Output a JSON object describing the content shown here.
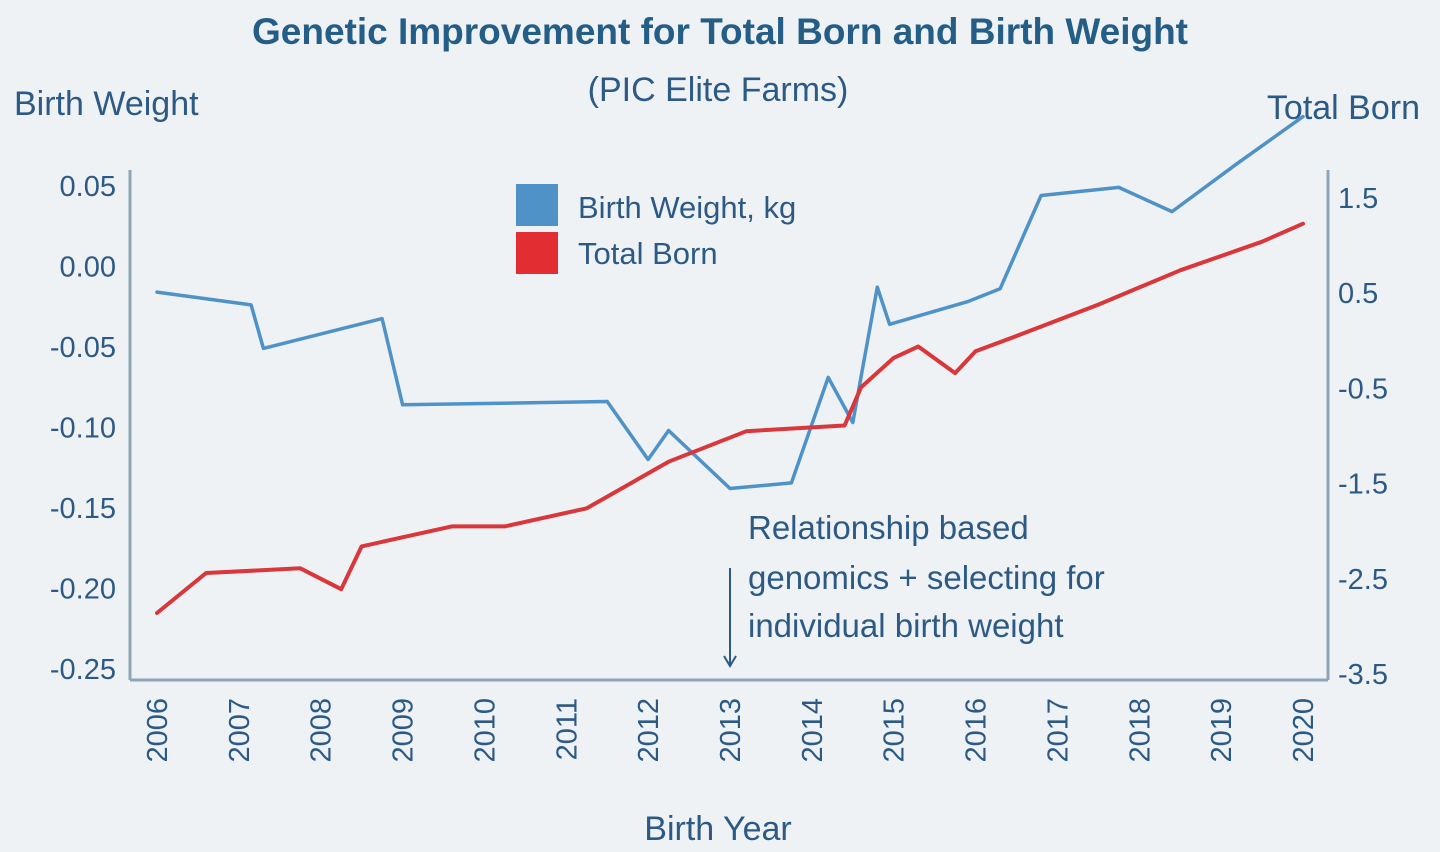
{
  "chart_data": {
    "type": "line",
    "title": "Genetic Improvement for Total Born and Birth Weight",
    "subtitle": "(PIC Elite Farms)",
    "xlabel": "Birth Year",
    "ylabel_left": "Birth Weight",
    "ylabel_right": "Total Born",
    "categories": [
      "2006",
      "2007",
      "2008",
      "2009",
      "2010",
      "2011",
      "2012",
      "2013",
      "2014",
      "2015",
      "2016",
      "2017",
      "2018",
      "2019",
      "2020"
    ],
    "xlim": [
      2006,
      2020
    ],
    "ylim_left": [
      -0.25,
      0.05
    ],
    "ylim_right": [
      -3.5,
      1.5
    ],
    "left_ticks": [
      "0.05",
      "0.00",
      "-0.05",
      "-0.10",
      "-0.15",
      "-0.20",
      "-0.25"
    ],
    "right_ticks": [
      "1.5",
      "0.5",
      "-0.5",
      "-1.5",
      "-2.5",
      "-3.5"
    ],
    "legend_position": "top-center",
    "grid": false,
    "series": [
      {
        "name": "Birth Weight, kg",
        "axis": "left",
        "color": "#4f92c7",
        "x": [
          2006.0,
          2007.15,
          2007.3,
          2008.75,
          2009.0,
          2011.5,
          2012.0,
          2012.25,
          2013.0,
          2013.75,
          2014.2,
          2014.5,
          2014.8,
          2014.95,
          2015.9,
          2016.3,
          2016.8,
          2017.75,
          2018.4,
          2019.2,
          2020.0
        ],
        "y": [
          -0.0165,
          -0.0245,
          -0.0515,
          -0.033,
          -0.0865,
          -0.0845,
          -0.1205,
          -0.1025,
          -0.1385,
          -0.135,
          -0.0695,
          -0.0975,
          -0.0135,
          -0.0365,
          -0.0225,
          -0.0145,
          0.0435,
          0.0485,
          0.0335,
          0.0635,
          0.0925
        ]
      },
      {
        "name": "Total Born",
        "axis": "right",
        "color": "#d9373b",
        "x": [
          2006.0,
          2006.6,
          2007.75,
          2008.25,
          2008.5,
          2009.6,
          2010.25,
          2011.25,
          2012.25,
          2013.2,
          2014.4,
          2014.6,
          2015.0,
          2015.3,
          2015.75,
          2016.0,
          2016.5,
          2017.5,
          2018.5,
          2019.5,
          2020.0
        ],
        "y": [
          -2.87,
          -2.45,
          -2.4,
          -2.62,
          -2.17,
          -1.96,
          -1.96,
          -1.77,
          -1.28,
          -0.96,
          -0.9,
          -0.5,
          -0.19,
          -0.07,
          -0.35,
          -0.12,
          0.04,
          0.37,
          0.73,
          1.03,
          1.22
        ]
      }
    ],
    "annotation": {
      "lines": [
        "Relationship based",
        "genomics + selecting for",
        "individual birth weight"
      ],
      "arrow_x": 2013
    }
  }
}
